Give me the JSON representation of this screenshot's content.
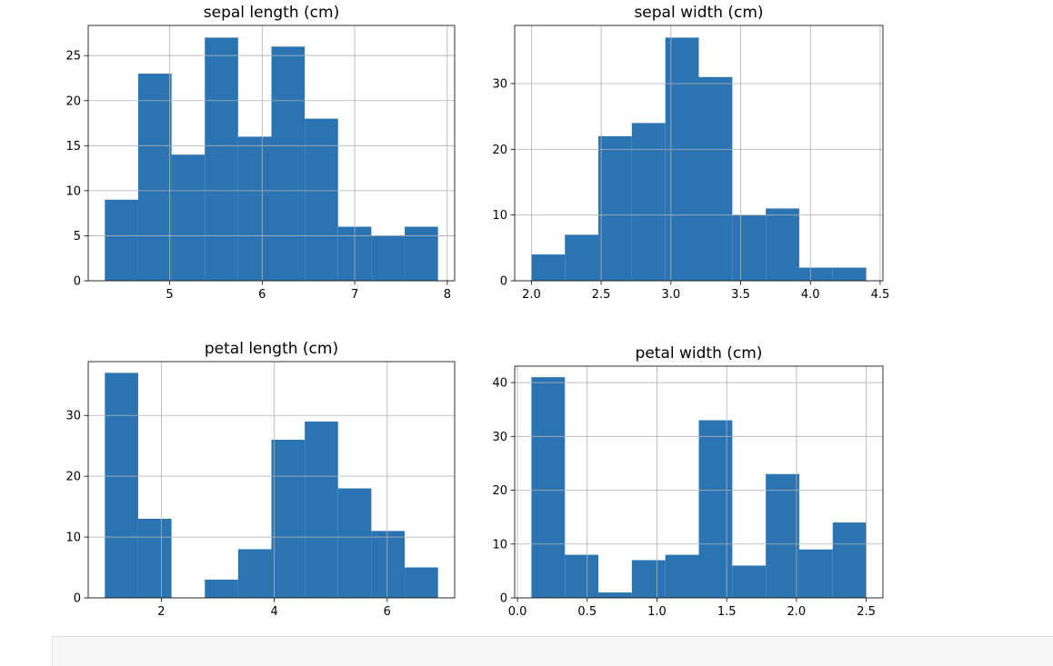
{
  "chart_data": [
    {
      "type": "histogram",
      "title": "sepal length (cm)",
      "bins": [
        4.3,
        4.66,
        5.02,
        5.38,
        5.74,
        6.1,
        6.46,
        6.82,
        7.18,
        7.54,
        7.9
      ],
      "values": [
        9,
        23,
        14,
        27,
        16,
        26,
        18,
        6,
        5,
        6
      ],
      "xlim": [
        4.12,
        8.08
      ],
      "ylim": [
        0,
        28.35
      ],
      "xticks": [
        5,
        6,
        7,
        8
      ],
      "yticks": [
        0,
        5,
        10,
        15,
        20,
        25
      ],
      "grid": true,
      "color": "#2b74b3"
    },
    {
      "type": "histogram",
      "title": "sepal width (cm)",
      "bins": [
        2.0,
        2.24,
        2.48,
        2.72,
        2.96,
        3.2,
        3.44,
        3.68,
        3.92,
        4.16,
        4.4
      ],
      "values": [
        4,
        7,
        22,
        24,
        37,
        31,
        10,
        11,
        2,
        2
      ],
      "xlim": [
        1.88,
        4.52
      ],
      "ylim": [
        0,
        38.85
      ],
      "xticks": [
        {
          "value": 2.0,
          "label": "2.0"
        },
        2.5,
        {
          "value": 3.0,
          "label": "3.0"
        },
        3.5,
        {
          "value": 4.0,
          "label": "4.0"
        },
        4.5
      ],
      "yticks": [
        0,
        10,
        20,
        30
      ],
      "grid": true,
      "color": "#2b74b3"
    },
    {
      "type": "histogram",
      "title": "petal length (cm)",
      "bins": [
        1.0,
        1.59,
        2.18,
        2.77,
        3.36,
        3.95,
        4.54,
        5.13,
        5.72,
        6.31,
        6.9
      ],
      "values": [
        37,
        13,
        0,
        3,
        8,
        26,
        29,
        18,
        11,
        5
      ],
      "xlim": [
        0.705,
        7.195
      ],
      "ylim": [
        0,
        38.85
      ],
      "xticks": [
        2,
        4,
        6
      ],
      "yticks": [
        0,
        10,
        20,
        30
      ],
      "grid": true,
      "color": "#2b74b3"
    },
    {
      "type": "histogram",
      "title": "petal width (cm)",
      "bins": [
        0.1,
        0.34,
        0.58,
        0.82,
        1.06,
        1.3,
        1.54,
        1.78,
        2.02,
        2.26,
        2.5
      ],
      "values": [
        41,
        8,
        1,
        7,
        8,
        33,
        6,
        23,
        9,
        14
      ],
      "xlim": [
        -0.02,
        2.62
      ],
      "ylim": [
        0,
        43.05
      ],
      "xticks": [
        {
          "value": 0.0,
          "label": "0.0"
        },
        0.5,
        {
          "value": 1.0,
          "label": "1.0"
        },
        1.5,
        {
          "value": 2.0,
          "label": "2.0"
        },
        2.5
      ],
      "yticks": [
        0,
        10,
        20,
        30,
        40
      ],
      "grid": true,
      "color": "#2b74b3"
    }
  ]
}
